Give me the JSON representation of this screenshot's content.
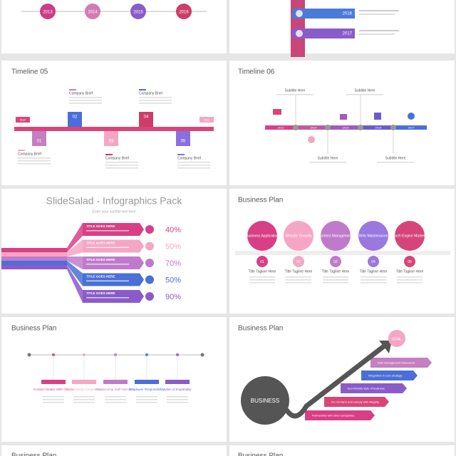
{
  "slides": [
    {
      "years": [
        "2013",
        "2014",
        "2015",
        "2016"
      ]
    },
    {
      "years": [
        "2016",
        "2017"
      ]
    },
    {
      "title": "Timeline 05",
      "start": "Start",
      "end": "End",
      "steps": [
        "01",
        "02",
        "03",
        "04",
        "05"
      ],
      "briefs": [
        "Company Brief",
        "Company Brief",
        "Company Brief",
        "Company Brief",
        "Company Brief"
      ]
    },
    {
      "title": "Timeline 06",
      "years": [
        "2013",
        "2014",
        "2015",
        "2016",
        "2017"
      ],
      "subtitles": [
        "Subtitle Here",
        "Subtitle Here",
        "Subtitle Here",
        "Subtitle Here"
      ]
    },
    {
      "title": "SlideSalad - Infographics Pack",
      "subtitle": "Enter your subtitle text here",
      "items": [
        {
          "title": "TITLE GOES HERE",
          "percent": "40%"
        },
        {
          "title": "TITLE GOES HERE",
          "percent": "50%"
        },
        {
          "title": "TITLE GOES HERE",
          "percent": "70%"
        },
        {
          "title": "TITLE GOES HERE",
          "percent": "50%"
        },
        {
          "title": "TITLE GOES HERE",
          "percent": "90%"
        }
      ]
    },
    {
      "title": "Business Plan",
      "items": [
        {
          "label": "Business Application",
          "number": "01",
          "tagline": "Title Tagline Here"
        },
        {
          "label": "Website Security",
          "number": "02",
          "tagline": "Title Tagline Here"
        },
        {
          "label": "Content Management",
          "number": "03",
          "tagline": "Title Tagline Here"
        },
        {
          "label": "Web Maintenance",
          "number": "04",
          "tagline": "Title Tagline Here"
        },
        {
          "label": "Search Engine Marketing",
          "number": "05",
          "tagline": "Title Tagline Here"
        }
      ]
    },
    {
      "title": "Business Plan",
      "items": [
        "Contact Details With Clients",
        "Professional Competency",
        "Relationship Staff Members",
        "Employee Responsibility",
        "Sales of Impartiality"
      ]
    },
    {
      "title": "Business Plan",
      "center": "BUSINESS",
      "goal": "GOAL",
      "steps": [
        "Risk management framework",
        "Integration in core strategy",
        "Eco-friendly style of business",
        "Do not harm and comply with integrity",
        "Partnership with other companies"
      ]
    },
    {
      "title": "Business Plan"
    },
    {
      "title": "Business Plan"
    }
  ]
}
